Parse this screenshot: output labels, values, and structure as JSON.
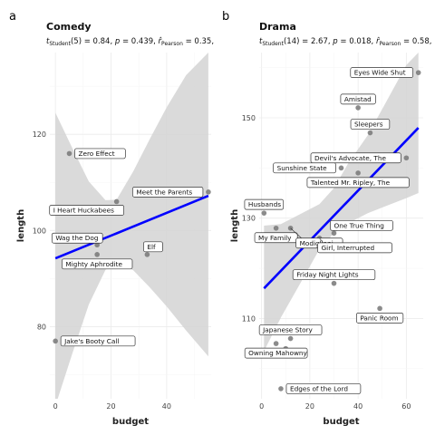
{
  "chart_data": [
    {
      "type": "scatter",
      "panel_tag": "a",
      "title": "Comedy",
      "subtitle": {
        "student_pre": "t",
        "student_sub": "Student",
        "student_val": "(5) = 0.84, ",
        "p_label": "p",
        "p_val": " = 0.439, ",
        "r_hat": "r̂",
        "r_sub": "Pearson",
        "r_val": " = 0.35,"
      },
      "xlabel": "budget",
      "ylabel": "length",
      "xlim": [
        -2,
        56
      ],
      "ylim": [
        65,
        137
      ],
      "xticks": [
        0,
        20,
        40
      ],
      "yticks": [
        80,
        100,
        120
      ],
      "fit": {
        "x0": 0,
        "y0": 94.2,
        "x1": 55,
        "y1": 107.2
      },
      "band": [
        {
          "x": 0,
          "lo": 63.5,
          "hi": 124.5
        },
        {
          "x": 6,
          "lo": 74.3,
          "hi": 117.2
        },
        {
          "x": 12,
          "lo": 84.6,
          "hi": 110.2
        },
        {
          "x": 18,
          "lo": 91.8,
          "hi": 106.3
        },
        {
          "x": 22,
          "lo": 93.4,
          "hi": 106.4
        },
        {
          "x": 28,
          "lo": 91.7,
          "hi": 112.3
        },
        {
          "x": 34,
          "lo": 88.1,
          "hi": 119.1
        },
        {
          "x": 40,
          "lo": 84.2,
          "hi": 125.6
        },
        {
          "x": 47,
          "lo": 79.2,
          "hi": 132.3
        },
        {
          "x": 55,
          "lo": 73.8,
          "hi": 137.0
        }
      ],
      "points": [
        {
          "x": 5,
          "y": 116,
          "label": "Zero Effect",
          "pos": "r"
        },
        {
          "x": 55,
          "y": 108,
          "label": "Meet the Parents",
          "pos": "l"
        },
        {
          "x": 22,
          "y": 106,
          "label": "I Heart Huckabees",
          "pos": "bl"
        },
        {
          "x": 15,
          "y": 97,
          "label": "Wag the Dog",
          "pos": "tl"
        },
        {
          "x": 15,
          "y": 95,
          "label": "Mighty Aphrodite",
          "pos": "b"
        },
        {
          "x": 33,
          "y": 95,
          "label": "Elf",
          "pos": "tr"
        },
        {
          "x": 0,
          "y": 77,
          "label": "Jake's Booty Call",
          "pos": "r"
        }
      ]
    },
    {
      "type": "scatter",
      "panel_tag": "b",
      "title": "Drama",
      "subtitle": {
        "student_pre": "t",
        "student_sub": "Student",
        "student_val": "(14) = 2.67, ",
        "p_label": "p",
        "p_val": " = 0.018, ",
        "r_hat": "r̂",
        "r_sub": "Pearson",
        "r_val": " = 0.58,"
      },
      "xlabel": "budget",
      "ylabel": "length",
      "xlim": [
        -1,
        67
      ],
      "ylim": [
        94,
        163
      ],
      "xticks": [
        0,
        20,
        40,
        60
      ],
      "yticks": [
        110,
        130,
        150
      ],
      "fit": {
        "x0": 1,
        "y0": 116,
        "x1": 65,
        "y1": 148
      },
      "band": [
        {
          "x": 1,
          "lo": 103.5,
          "hi": 128.5
        },
        {
          "x": 8,
          "lo": 110.2,
          "hi": 128.8
        },
        {
          "x": 16,
          "lo": 117.0,
          "hi": 130.8
        },
        {
          "x": 24,
          "lo": 123.8,
          "hi": 132.8
        },
        {
          "x": 30,
          "lo": 127.0,
          "hi": 136.0
        },
        {
          "x": 36,
          "lo": 129.0,
          "hi": 141.0
        },
        {
          "x": 44,
          "lo": 131.0,
          "hi": 146.5
        },
        {
          "x": 52,
          "lo": 132.5,
          "hi": 153.5
        },
        {
          "x": 60,
          "lo": 134.0,
          "hi": 160.5
        },
        {
          "x": 65,
          "lo": 135.0,
          "hi": 163.0
        }
      ],
      "points": [
        {
          "x": 65,
          "y": 159,
          "label": "Eyes Wide Shut",
          "pos": "l"
        },
        {
          "x": 40,
          "y": 152,
          "label": "Amistad",
          "pos": "t"
        },
        {
          "x": 45,
          "y": 147,
          "label": "Sleepers",
          "pos": "t"
        },
        {
          "x": 60,
          "y": 142,
          "label": "Devil's Advocate, The",
          "pos": "l"
        },
        {
          "x": 40,
          "y": 139,
          "label": "Talented Mr. Ripley, The",
          "pos": "b"
        },
        {
          "x": 33,
          "y": 140,
          "label": "Sunshine State",
          "pos": "l"
        },
        {
          "x": 1,
          "y": 131,
          "label": "Husbands",
          "pos": "t"
        },
        {
          "x": 6,
          "y": 128,
          "label": "My Family",
          "pos": "b"
        },
        {
          "x": 12,
          "y": 128,
          "label": "Modigliani",
          "pos": "bbr"
        },
        {
          "x": 30,
          "y": 127,
          "label": "One True Thing",
          "pos": "tr"
        },
        {
          "x": 24,
          "y": 126,
          "label": "Girl, Interrupted",
          "pos": "br"
        },
        {
          "x": 30,
          "y": 117,
          "label": "Friday Night Lights",
          "pos": "t"
        },
        {
          "x": 49,
          "y": 112,
          "label": "Panic Room",
          "pos": "b"
        },
        {
          "x": 12,
          "y": 106,
          "label": "Japanese Story",
          "pos": "t"
        },
        {
          "x": 6,
          "y": 105,
          "label": "Owning Mahowny",
          "pos": "b"
        },
        {
          "x": 10,
          "y": 104,
          "label": "Owning Mahowny",
          "hidden": true
        },
        {
          "x": 8,
          "y": 96,
          "label": "Edges of the Lord",
          "pos": "r"
        }
      ]
    }
  ]
}
